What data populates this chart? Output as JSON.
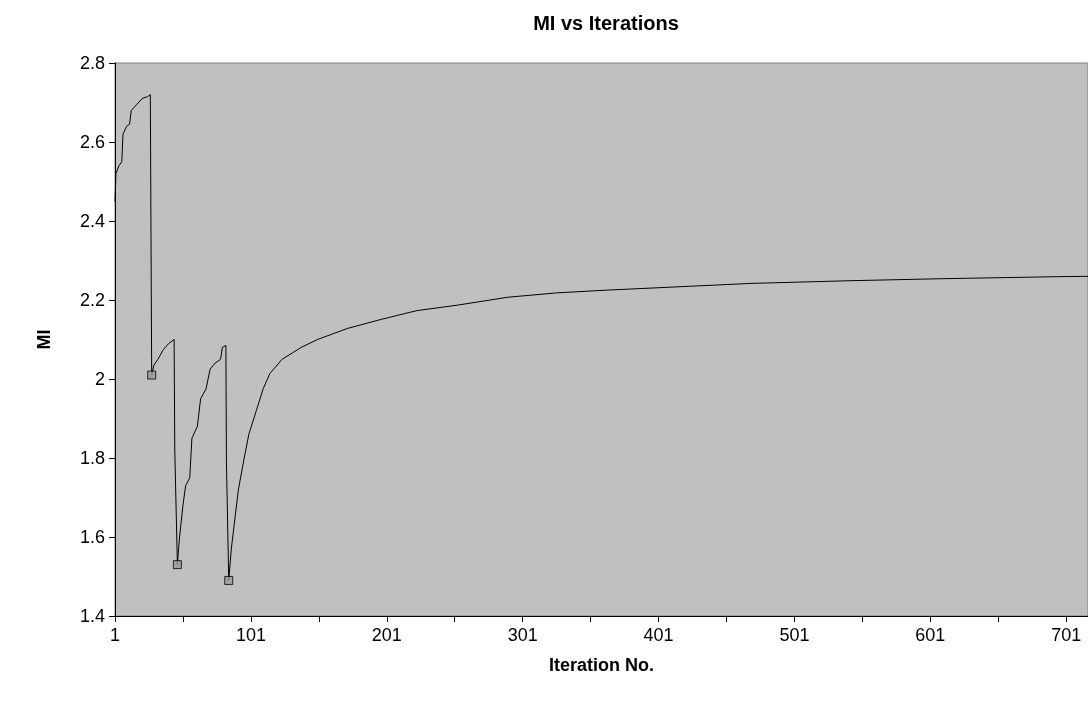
{
  "chart_data": {
    "type": "line",
    "title": "MI vs Iterations",
    "xlabel": "Iteration No.",
    "ylabel": "MI",
    "xlim": [
      1,
      717
    ],
    "ylim": [
      1.4,
      2.8
    ],
    "xticks": [
      1,
      {
        "value": 51,
        "label": null
      },
      101,
      {
        "value": 151,
        "label": null
      },
      201,
      {
        "value": 251,
        "label": null
      },
      301,
      {
        "value": 351,
        "label": null
      },
      401,
      {
        "value": 451,
        "label": null
      },
      501,
      {
        "value": 551,
        "label": null
      },
      601,
      {
        "value": 651,
        "label": null
      },
      701
    ],
    "yticks": [
      1.4,
      1.6,
      1.8,
      2,
      2.2,
      2.4,
      2.6,
      2.8
    ],
    "marker": "none",
    "line_style": "solid",
    "series": [
      {
        "color": "#000000",
        "x": [
          1,
          1.7,
          3.9,
          6,
          6.9,
          9.6,
          11.7,
          13,
          17,
          21,
          25,
          27,
          27.5,
          28,
          29.6,
          32.6,
          36.7,
          40.6,
          44.5,
          45,
          46.9,
          48.5,
          51,
          53,
          56,
          57.6,
          61.6,
          64,
          68,
          71,
          74.6,
          78.7,
          80,
          82.6,
          83,
          84.7,
          86.6,
          89.7,
          91.8,
          95.8,
          99.5,
          105,
          110,
          115,
          124,
          138,
          150,
          172,
          197,
          223,
          253,
          290,
          326,
          363,
          388,
          469,
          544,
          611,
          694,
          717
        ],
        "values": [
          2.45,
          2.52,
          2.54,
          2.55,
          2.62,
          2.64,
          2.645,
          2.68,
          2.695,
          2.71,
          2.715,
          2.72,
          2.36,
          2.01,
          2.035,
          2.05,
          2.075,
          2.09,
          2.1,
          1.82,
          1.53,
          1.6,
          1.68,
          1.73,
          1.75,
          1.85,
          1.88,
          1.95,
          1.975,
          2.025,
          2.04,
          2.05,
          2.08,
          2.085,
          1.79,
          1.49,
          1.57,
          1.66,
          1.72,
          1.795,
          1.86,
          1.92,
          1.975,
          2.014,
          2.05,
          2.08,
          2.1,
          2.128,
          2.151,
          2.173,
          2.187,
          2.207,
          2.218,
          2.225,
          2.229,
          2.242,
          2.249,
          2.254,
          2.259,
          2.26
        ]
      },
      {
        "type": "scatter",
        "marker": "square",
        "color": "#999999",
        "x": [
          28,
          46.9,
          84.7
        ],
        "values": [
          2.01,
          1.53,
          1.49
        ]
      }
    ]
  }
}
